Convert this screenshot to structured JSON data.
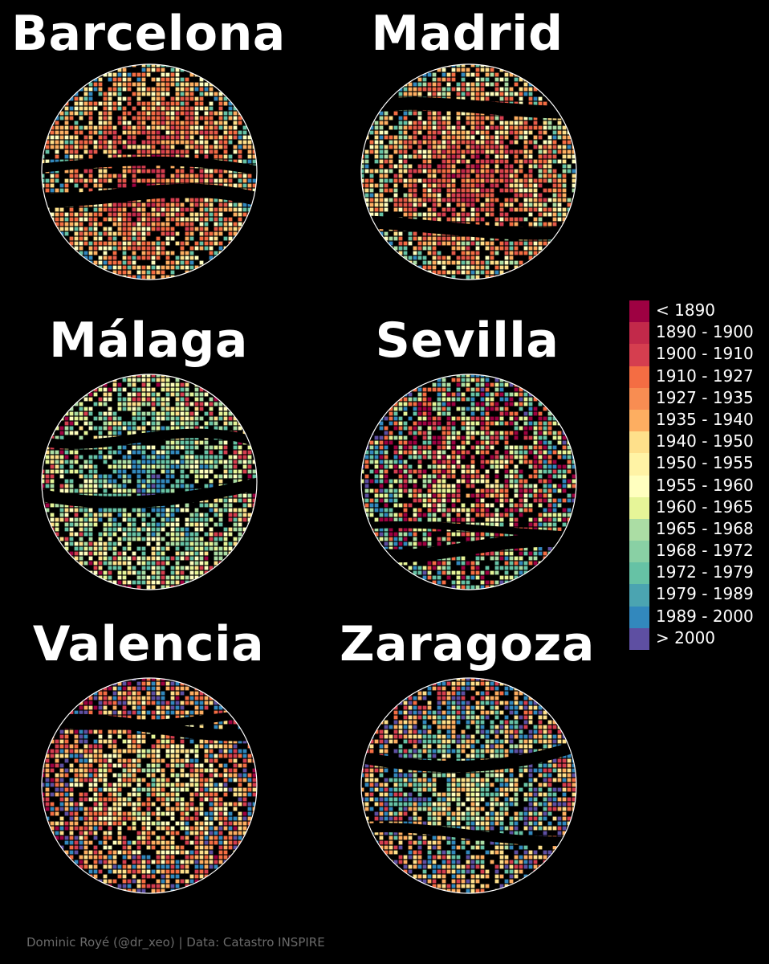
{
  "cities": [
    {
      "name": "Barcelona",
      "palette": [
        "#9e0142",
        "#c2294a",
        "#d53e4f",
        "#e45a49",
        "#f46d43",
        "#fdae61",
        "#fee08b",
        "#ffffbf",
        "#66c2a5",
        "#3288bd"
      ]
    },
    {
      "name": "Madrid",
      "palette": [
        "#9e0142",
        "#c2294a",
        "#d53e4f",
        "#d53e4f",
        "#e45a49",
        "#f46d43",
        "#fdae61",
        "#fee08b",
        "#ffffbf",
        "#abdda4",
        "#66c2a5",
        "#3288bd"
      ]
    },
    {
      "name": "Málaga",
      "palette": [
        "#5e4fa2",
        "#3288bd",
        "#3288bd",
        "#66c2a5",
        "#66c2a5",
        "#abdda4",
        "#e6f598",
        "#ffffbf",
        "#fee08b",
        "#d53e4f",
        "#9e0142"
      ]
    },
    {
      "name": "Sevilla",
      "palette": [
        "#fdae61",
        "#fee08b",
        "#ffffbf",
        "#d53e4f",
        "#9e0142",
        "#f46d43",
        "#e6f598",
        "#abdda4",
        "#66c2a5",
        "#3288bd",
        "#5e4fa2"
      ]
    },
    {
      "name": "Valencia",
      "palette": [
        "#66c2a5",
        "#abdda4",
        "#e6f598",
        "#ffffbf",
        "#fee08b",
        "#fdae61",
        "#f46d43",
        "#d53e4f",
        "#3288bd",
        "#5e4fa2",
        "#9e0142"
      ]
    },
    {
      "name": "Zaragoza",
      "palette": [
        "#e6f598",
        "#ffffbf",
        "#abdda4",
        "#66c2a5",
        "#fee08b",
        "#fdae61",
        "#3288bd",
        "#5e4fa2",
        "#d53e4f",
        "#f46d43"
      ]
    }
  ],
  "legend": [
    {
      "label": "< 1890",
      "color": "#9e0142"
    },
    {
      "label": "1890 - 1900",
      "color": "#c2294a"
    },
    {
      "label": "1900 - 1910",
      "color": "#d53e4f"
    },
    {
      "label": "1910 - 1927",
      "color": "#f46d43"
    },
    {
      "label": "1927 - 1935",
      "color": "#f88d52"
    },
    {
      "label": "1935 - 1940",
      "color": "#fdae61"
    },
    {
      "label": "1940 - 1950",
      "color": "#fee08b"
    },
    {
      "label": "1950 - 1955",
      "color": "#fff3a5"
    },
    {
      "label": "1955 - 1960",
      "color": "#ffffbf"
    },
    {
      "label": "1960 - 1965",
      "color": "#e6f598"
    },
    {
      "label": "1965 - 1968",
      "color": "#abdda4"
    },
    {
      "label": "1968 - 1972",
      "color": "#89d0a4"
    },
    {
      "label": "1972 - 1979",
      "color": "#66c2a5"
    },
    {
      "label": "1979 - 1989",
      "color": "#4ba4b1"
    },
    {
      "label": "1989 - 2000",
      "color": "#3288bd"
    },
    {
      "label": "> 2000",
      "color": "#5e4fa2"
    }
  ],
  "credit": "Dominic Royé (@dr_xeo) | Data: Catastro INSPIRE"
}
